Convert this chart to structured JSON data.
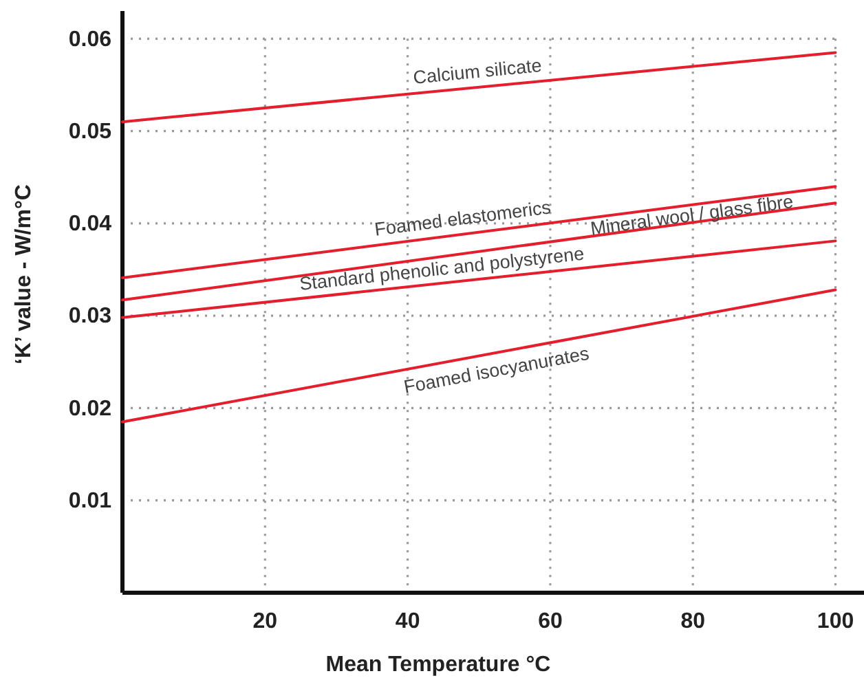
{
  "chart_data": {
    "type": "line",
    "xlabel": "Mean Temperature °C",
    "ylabel": "‘K’ value - W/m°C",
    "xlim": [
      0,
      104
    ],
    "ylim": [
      0,
      0.063
    ],
    "xticks": [
      20,
      40,
      60,
      80,
      100
    ],
    "yticks": [
      0.01,
      0.02,
      0.03,
      0.04,
      0.05,
      0.06
    ],
    "grid": true,
    "x": [
      0,
      100
    ],
    "line_style": "solid",
    "marker": "none",
    "series": [
      {
        "name": "Calcium silicate",
        "color": "#e31e2d",
        "values": [
          0.051,
          0.0585
        ]
      },
      {
        "name": "Foamed elastomerics",
        "color": "#e31e2d",
        "values": [
          0.0341,
          0.044
        ]
      },
      {
        "name": "Mineral wool / glass fibre",
        "color": "#e31e2d",
        "values": [
          0.0317,
          0.0422
        ]
      },
      {
        "name": "Standard phenolic and polystyrene",
        "color": "#e31e2d",
        "values": [
          0.0298,
          0.0381
        ]
      },
      {
        "name": "Foamed isocyanurates",
        "color": "#e31e2d",
        "values": [
          0.0185,
          0.0328
        ]
      }
    ]
  }
}
